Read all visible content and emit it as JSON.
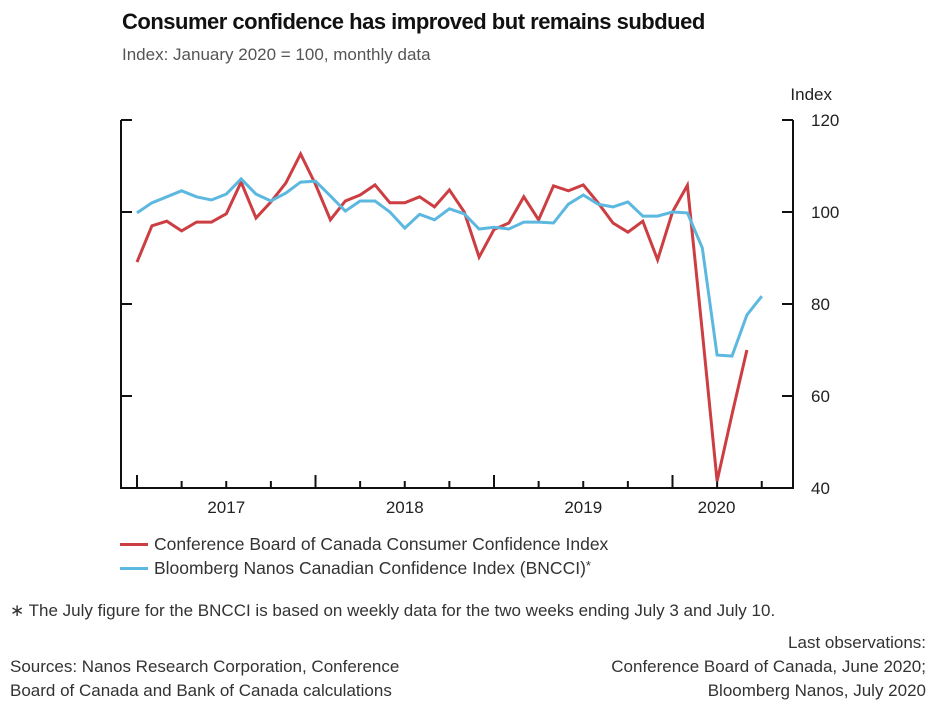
{
  "header": {
    "title": "Consumer confidence has improved but remains subdued",
    "subtitle": "Index: January 2020 = 100, monthly data"
  },
  "legend": {
    "items": [
      {
        "label": "Conference Board of Canada Consumer Confidence Index",
        "color": "#cc3e42",
        "marker": ""
      },
      {
        "label": "Bloomberg Nanos Canadian Confidence Index (BNCCI)",
        "color": "#5db8e0",
        "marker": "*"
      }
    ]
  },
  "footnote": "∗  The July figure for the BNCCI is based on weekly data for the two weeks ending July 3 and July 10.",
  "sources": {
    "line1": "Sources: Nanos Research Corporation, Conference",
    "line2": "Board of Canada and Bank of Canada calculations"
  },
  "last_observations": {
    "heading": "Last observations:",
    "line1": "Conference Board of Canada, June 2020;",
    "line2": "Bloomberg Nanos, July 2020"
  },
  "chart_data": {
    "type": "line",
    "title": "Consumer confidence has improved but remains subdued",
    "subtitle": "Index: January 2020 = 100, monthly data",
    "xlabel": "",
    "ylabel": "Index",
    "ylim": [
      40,
      120
    ],
    "yticks": [
      40,
      60,
      80,
      100,
      120
    ],
    "x_start": "2017-01",
    "x_end": "2020-07",
    "xtick_labels": [
      "2017",
      "2018",
      "2019",
      "2020"
    ],
    "grid": false,
    "legend_position": "bottom-left",
    "x": [
      "2017-01",
      "2017-02",
      "2017-03",
      "2017-04",
      "2017-05",
      "2017-06",
      "2017-07",
      "2017-08",
      "2017-09",
      "2017-10",
      "2017-11",
      "2017-12",
      "2018-01",
      "2018-02",
      "2018-03",
      "2018-04",
      "2018-05",
      "2018-06",
      "2018-07",
      "2018-08",
      "2018-09",
      "2018-10",
      "2018-11",
      "2018-12",
      "2019-01",
      "2019-02",
      "2019-03",
      "2019-04",
      "2019-05",
      "2019-06",
      "2019-07",
      "2019-08",
      "2019-09",
      "2019-10",
      "2019-11",
      "2019-12",
      "2020-01",
      "2020-02",
      "2020-03",
      "2020-04",
      "2020-05",
      "2020-06",
      "2020-07"
    ],
    "series": [
      {
        "name": "Conference Board of Canada Consumer Confidence Index",
        "color": "#cc3e42",
        "values": [
          89.1,
          97.0,
          98.0,
          95.9,
          97.8,
          97.8,
          99.6,
          106.5,
          98.7,
          102.2,
          106.3,
          112.6,
          106.0,
          98.3,
          102.4,
          103.7,
          105.9,
          102.0,
          102.0,
          103.3,
          101.1,
          104.8,
          100.0,
          90.2,
          96.2,
          97.6,
          103.3,
          98.3,
          105.7,
          104.6,
          105.9,
          102.0,
          97.6,
          95.6,
          98.0,
          89.6,
          100.0,
          105.8,
          74.0,
          41.5,
          56.0,
          70.0,
          null
        ]
      },
      {
        "name": "Bloomberg Nanos Canadian Confidence Index (BNCCI)*",
        "color": "#5db8e0",
        "values": [
          99.8,
          102.0,
          103.3,
          104.6,
          103.3,
          102.6,
          103.9,
          107.2,
          103.9,
          102.4,
          104.1,
          106.5,
          106.7,
          103.5,
          100.2,
          102.4,
          102.4,
          100.0,
          96.5,
          99.5,
          98.3,
          100.7,
          99.6,
          96.3,
          96.7,
          96.3,
          97.8,
          97.8,
          97.6,
          101.7,
          103.7,
          101.7,
          101.1,
          102.2,
          99.1,
          99.1,
          100.0,
          99.8,
          92.2,
          68.9,
          68.7,
          77.6,
          81.7
        ]
      }
    ]
  }
}
